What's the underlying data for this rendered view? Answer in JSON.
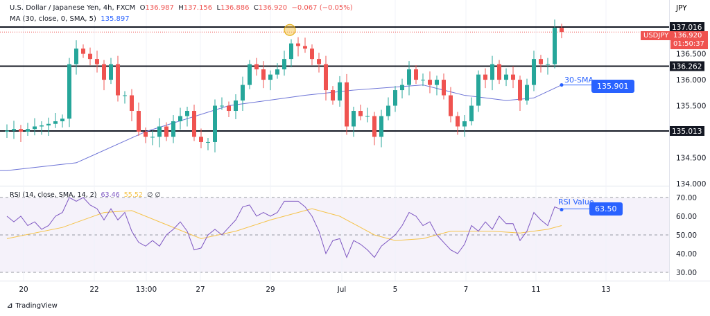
{
  "header": {
    "symbol": "U.S. Dollar / Japanese Yen, 4h, FXCM",
    "o_label": "O",
    "o": "136.987",
    "h_label": "H",
    "h": "137.156",
    "l_label": "L",
    "l": "136.886",
    "c_label": "C",
    "c": "136.920",
    "change": "−0.067 (−0.05%)",
    "ma_label": "MA (30, close, 0, SMA, 5)",
    "ma_value": "135.897"
  },
  "rsi_header": {
    "label": "RSI (14, close, SMA, 14, 2)",
    "rsi": "63.46",
    "rsi_ma": "55.52",
    "a": "∅",
    "b": "∅"
  },
  "currency": "JPY",
  "price_ticks": [
    "136.500",
    "136.000",
    "135.500",
    "134.500",
    "134.000"
  ],
  "rsi_ticks": [
    "70.00",
    "60.00",
    "50.00",
    "40.00",
    "30.00"
  ],
  "date_ticks": [
    "20",
    "22",
    "13:00",
    "27",
    "29",
    "Jul",
    "5",
    "7",
    "11",
    "13"
  ],
  "levels": [
    "137.016",
    "136.262",
    "135.013"
  ],
  "symbol_tag": "USDJPY",
  "last_price": "136.920",
  "countdown": "01:50:37",
  "sma_annotation": "30-SMA",
  "sma_value": "135.901",
  "rsi_annotation": "RSI Value",
  "rsi_value": "63.50",
  "brand": "TradingView",
  "colors": {
    "up": "#26a69a",
    "down": "#ef5350",
    "ma": "#6c73d6",
    "rsi": "#7e57c2",
    "rsi_ma": "#f5c34a",
    "accent": "#2962ff"
  },
  "chart_data": [
    {
      "type": "candlestick",
      "title": "U.S. Dollar / Japanese Yen, 4h, FXCM",
      "ylim": [
        133.95,
        137.3
      ],
      "close": [
        135.0,
        135.02,
        135.05,
        135.0,
        135.05,
        135.1,
        135.12,
        135.15,
        135.2,
        135.25,
        136.3,
        136.6,
        136.5,
        136.4,
        136.3,
        136.0,
        136.3,
        135.7,
        135.7,
        135.4,
        135.0,
        134.9,
        134.9,
        135.1,
        134.9,
        135.2,
        135.3,
        135.4,
        134.9,
        134.8,
        134.8,
        135.5,
        135.5,
        135.4,
        135.6,
        135.9,
        136.3,
        136.2,
        136.0,
        136.1,
        136.2,
        136.4,
        136.7,
        136.65,
        136.6,
        136.4,
        136.3,
        135.8,
        135.6,
        135.95,
        135.1,
        135.4,
        135.3,
        135.3,
        134.9,
        135.3,
        135.5,
        135.8,
        135.9,
        136.2,
        136.0,
        136.0,
        135.9,
        136.0,
        135.7,
        135.3,
        135.1,
        135.2,
        135.5,
        136.1,
        136.0,
        136.3,
        136.0,
        136.1,
        136.0,
        135.6,
        135.9,
        136.4,
        136.3,
        136.3,
        137.0,
        136.92
      ],
      "sma_points": [
        [
          0,
          134.25
        ],
        [
          10,
          134.4
        ],
        [
          20,
          135.0
        ],
        [
          32,
          135.5
        ],
        [
          43,
          135.7
        ],
        [
          50,
          135.8
        ],
        [
          60,
          135.9
        ],
        [
          66,
          135.7
        ],
        [
          72,
          135.6
        ],
        [
          76,
          135.65
        ],
        [
          80,
          135.9
        ]
      ]
    },
    {
      "type": "line",
      "ylim": [
        25,
        75
      ],
      "rsi": [
        60,
        57,
        60,
        55,
        57,
        53,
        55,
        60,
        62,
        70,
        68,
        70,
        66,
        64,
        58,
        64,
        58,
        62,
        52,
        46,
        44,
        47,
        44,
        50,
        53,
        57,
        52,
        42,
        43,
        50,
        53,
        50,
        54,
        58,
        65,
        66,
        60,
        62,
        60,
        62,
        68,
        68,
        68,
        65,
        60,
        52,
        40,
        47,
        48,
        38,
        47,
        45,
        42,
        38,
        44,
        47,
        50,
        55,
        62,
        60,
        55,
        57,
        50,
        46,
        42,
        40,
        45,
        55,
        52,
        57,
        53,
        60,
        56,
        56,
        47,
        52,
        62,
        58,
        55,
        65,
        63.5
      ],
      "rsi_ma_points": [
        [
          0,
          48
        ],
        [
          8,
          54
        ],
        [
          14,
          62
        ],
        [
          18,
          63
        ],
        [
          22,
          57
        ],
        [
          28,
          48
        ],
        [
          33,
          52
        ],
        [
          38,
          58
        ],
        [
          44,
          64
        ],
        [
          48,
          60
        ],
        [
          53,
          50
        ],
        [
          56,
          47
        ],
        [
          60,
          48
        ],
        [
          64,
          52
        ],
        [
          70,
          52
        ],
        [
          74,
          51
        ],
        [
          78,
          53
        ],
        [
          80,
          55
        ]
      ]
    }
  ]
}
